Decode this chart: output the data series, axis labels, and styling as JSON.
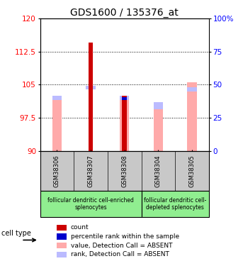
{
  "title": "GDS1600 / 135376_at",
  "samples": [
    "GSM38306",
    "GSM38307",
    "GSM38308",
    "GSM38304",
    "GSM38305"
  ],
  "ylim_left": [
    90,
    120
  ],
  "yticks_left": [
    90,
    97.5,
    105,
    112.5,
    120
  ],
  "ytick_labels_left": [
    "90",
    "97.5",
    "105",
    "112.5",
    "120"
  ],
  "ytick_labels_right": [
    "0",
    "25",
    "50",
    "75",
    "100%"
  ],
  "red_bars": [
    null,
    114.5,
    102.5,
    null,
    null
  ],
  "blue_bars": [
    null,
    104.0,
    102.2,
    null,
    103.5
  ],
  "pink_bars_top": [
    101.5,
    90,
    101.5,
    99.5,
    105.5
  ],
  "lavender_bars_bottom": [
    101.5,
    104.0,
    101.5,
    99.5,
    103.5
  ],
  "lavender_bars_top": [
    102.5,
    104.8,
    102.5,
    101.0,
    104.5
  ],
  "group1_label": "follicular dendritic cell-enriched\nsplenocytes",
  "group2_label": "follicular dendritic cell-\ndepleted splenocytes",
  "cell_type_label": "cell type",
  "legend_items": [
    {
      "color": "#cc0000",
      "label": "count"
    },
    {
      "color": "#0000cc",
      "label": "percentile rank within the sample"
    },
    {
      "color": "#ffaaaa",
      "label": "value, Detection Call = ABSENT"
    },
    {
      "color": "#bbbbff",
      "label": "rank, Detection Call = ABSENT"
    }
  ],
  "group1_bg": "#90ee90",
  "group2_bg": "#90ee90",
  "sample_bg": "#c8c8c8",
  "title_fontsize": 10,
  "tick_fontsize": 7.5,
  "label_fontsize": 7
}
